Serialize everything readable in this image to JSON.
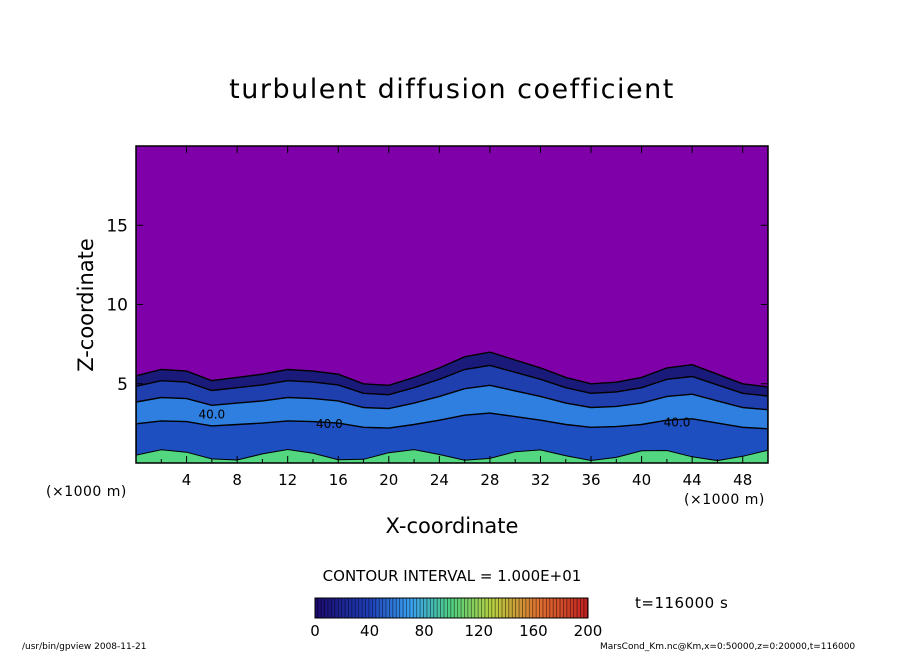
{
  "chart_data": {
    "type": "heatmap",
    "title": "turbulent diffusion coefficient",
    "xlabel": "X-coordinate",
    "ylabel": "Z-coordinate",
    "x_unit": "(×1000 m)",
    "xlim": [
      0,
      50
    ],
    "ylim": [
      0,
      20
    ],
    "x_ticks": [
      4,
      8,
      12,
      16,
      20,
      24,
      28,
      32,
      36,
      40,
      44,
      48
    ],
    "y_ticks": [
      5,
      10,
      15
    ],
    "contour_interval": "CONTOUR INTERVAL = 1.000E+01",
    "contour_labels": [
      {
        "x": 6.0,
        "z": 2.8,
        "label": "40.0"
      },
      {
        "x": 15.3,
        "z": 2.2,
        "label": "40.0"
      },
      {
        "x": 42.8,
        "z": 2.3,
        "label": "40.0"
      }
    ],
    "boundary_layer_top_z": [
      [
        0,
        5.5
      ],
      [
        2,
        5.9
      ],
      [
        4,
        5.8
      ],
      [
        6,
        5.2
      ],
      [
        8,
        5.4
      ],
      [
        10,
        5.6
      ],
      [
        12,
        5.9
      ],
      [
        14,
        5.8
      ],
      [
        16,
        5.6
      ],
      [
        18,
        5.0
      ],
      [
        20,
        4.9
      ],
      [
        22,
        5.4
      ],
      [
        24,
        6.0
      ],
      [
        26,
        6.7
      ],
      [
        28,
        7.0
      ],
      [
        30,
        6.5
      ],
      [
        32,
        6.0
      ],
      [
        34,
        5.4
      ],
      [
        36,
        5.0
      ],
      [
        38,
        5.1
      ],
      [
        40,
        5.4
      ],
      [
        42,
        6.0
      ],
      [
        44,
        6.2
      ],
      [
        46,
        5.6
      ],
      [
        48,
        5.0
      ],
      [
        50,
        4.8
      ]
    ],
    "colorbar": {
      "min": 0,
      "max": 200,
      "tick_labels": [
        "0",
        "40",
        "80",
        "120",
        "160",
        "200"
      ]
    },
    "colors": {
      "background_field": "#7f00a9",
      "low": "#1a1a7a",
      "mid": "#2f7fe0",
      "high": "#c83018"
    }
  },
  "annotations": {
    "time": "t=116000 s",
    "footer_left": "/usr/bin/gpview  2008-11-21",
    "footer_right": "MarsCond_Km.nc@Km,x=0:50000,z=0:20000,t=116000"
  }
}
